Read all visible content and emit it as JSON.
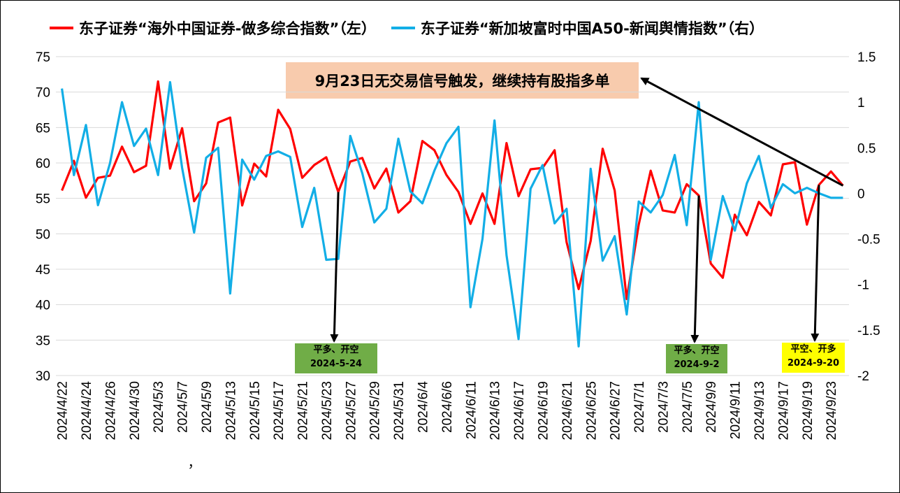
{
  "chart_data": {
    "type": "line",
    "categories": [
      "2024/4/22",
      "2024/4/23",
      "2024/4/24",
      "2024/4/25",
      "2024/4/26",
      "2024/4/29",
      "2024/4/30",
      "2024/5/2",
      "2024/5/3",
      "2024/5/6",
      "2024/5/7",
      "2024/5/8",
      "2024/5/9",
      "2024/5/10",
      "2024/5/13",
      "2024/5/14",
      "2024/5/15",
      "2024/5/16",
      "2024/5/17",
      "2024/5/20",
      "2024/5/21",
      "2024/5/22",
      "2024/5/23",
      "2024/5/24",
      "2024/5/27",
      "2024/5/28",
      "2024/5/29",
      "2024/5/30",
      "2024/5/31",
      "2024/6/3",
      "2024/6/4",
      "2024/6/5",
      "2024/6/6",
      "2024/6/7",
      "2024/6/11",
      "2024/6/12",
      "2024/6/13",
      "2024/6/14",
      "2024/6/17",
      "2024/6/18",
      "2024/6/19",
      "2024/6/20",
      "2024/6/21",
      "2024/6/24",
      "2024/6/25",
      "2024/6/26",
      "2024/6/27",
      "2024/6/28",
      "2024/7/1",
      "2024/7/2",
      "2024/7/3",
      "2024/7/4",
      "2024/7/5",
      "2024/9/2",
      "2024/9/9",
      "2024/9/10",
      "2024/9/11",
      "2024/9/12",
      "2024/9/13",
      "2024/9/14",
      "2024/9/17",
      "2024/9/18",
      "2024/9/19",
      "2024/9/20",
      "2024/9/23",
      "2024/9/24"
    ],
    "x_tick_labels": [
      "2024/4/22",
      "2024/4/24",
      "2024/4/26",
      "2024/4/30",
      "2024/5/3",
      "2024/5/7",
      "2024/5/9",
      "2024/5/13",
      "2024/5/15",
      "2024/5/17",
      "2024/5/21",
      "2024/5/23",
      "2024/5/27",
      "2024/5/29",
      "2024/5/31",
      "2024/6/4",
      "2024/6/6",
      "2024/6/11",
      "2024/6/13",
      "2024/6/17",
      "2024/6/19",
      "2024/6/21",
      "2024/6/25",
      "2024/6/27",
      "2024/7/1",
      "2024/7/3",
      "2024/7/5",
      "2024/9/9",
      "2024/9/11",
      "2024/9/13",
      "2024/9/17",
      "2024/9/19",
      "2024/9/23"
    ],
    "series": [
      {
        "name": "东子证券“海外中国证券-做多综合指数”（左）",
        "axis": "left",
        "color": "#ff0000",
        "values": [
          56.1,
          60.3,
          55.1,
          57.9,
          58.2,
          62.3,
          58.7,
          59.6,
          71.5,
          59.2,
          64.9,
          54.6,
          57.1,
          65.7,
          66.4,
          54.0,
          59.9,
          58.1,
          67.5,
          64.8,
          57.9,
          59.7,
          60.8,
          55.9,
          60.2,
          60.7,
          56.4,
          59.2,
          53.0,
          54.6,
          63.1,
          61.8,
          58.3,
          55.9,
          51.4,
          55.7,
          51.4,
          62.8,
          55.3,
          59.1,
          59.3,
          61.8,
          48.8,
          42.2,
          49.0,
          62.0,
          56.1,
          40.8,
          51.3,
          58.9,
          53.3,
          53.0,
          57.0,
          55.4,
          45.8,
          43.8,
          52.7,
          49.8,
          54.5,
          52.6,
          59.8,
          60.1,
          51.3,
          56.9,
          58.8,
          56.8
        ]
      },
      {
        "name": "东子证券“新加坡富时中国A50-新闻舆情指数”（右）",
        "axis": "right",
        "color": "#12aee6",
        "values": [
          1.15,
          0.2,
          0.75,
          -0.13,
          0.33,
          1.0,
          0.52,
          0.71,
          0.2,
          1.22,
          0.28,
          -0.43,
          0.39,
          0.5,
          -1.1,
          0.37,
          0.15,
          0.41,
          0.46,
          0.4,
          -0.37,
          0.06,
          -0.73,
          -0.72,
          0.63,
          0.22,
          -0.32,
          -0.17,
          0.6,
          0.02,
          -0.11,
          0.25,
          0.55,
          0.73,
          -1.25,
          -0.5,
          0.8,
          -0.68,
          -1.6,
          0.05,
          0.31,
          -0.33,
          -0.17,
          -1.68,
          0.27,
          -0.74,
          -0.47,
          -1.33,
          -0.09,
          -0.21,
          -0.02,
          0.42,
          -0.35,
          1.0,
          -0.73,
          -0.03,
          -0.41,
          0.11,
          0.41,
          -0.16,
          0.1,
          0.0,
          0.06,
          0.0,
          -0.05,
          -0.05
        ]
      }
    ],
    "y_left": {
      "min": 30,
      "max": 75,
      "step": 5,
      "ticks": [
        "30",
        "35",
        "40",
        "45",
        "50",
        "55",
        "60",
        "65",
        "70",
        "75"
      ]
    },
    "y_right": {
      "min": -2,
      "max": 1.5,
      "step": 0.5,
      "ticks": [
        "-2",
        "-1.5",
        "-1",
        "-0.5",
        "0",
        "0.5",
        "1",
        "1.5"
      ]
    },
    "grid": "horizontal",
    "legend_position": "top",
    "callout": {
      "text": "9月23日无交易信号触发，继续持有股指多单",
      "color": "#f8cbad",
      "arrow_targets": [
        {
          "category": "2024/9/24",
          "series": 0
        }
      ]
    },
    "signals": [
      {
        "line1": "平多、开空",
        "line2": "2024-5-24",
        "category": "2024/5/24",
        "color": "#70ad47"
      },
      {
        "line1": "平多、开空",
        "line2": "2024-9-2",
        "category": "2024/9/2",
        "color": "#70ad47"
      },
      {
        "line1": "平空、开多",
        "line2": "2024-9-20",
        "category": "2024/9/20",
        "color": "#ffff00"
      }
    ],
    "stray_mark": "，"
  }
}
